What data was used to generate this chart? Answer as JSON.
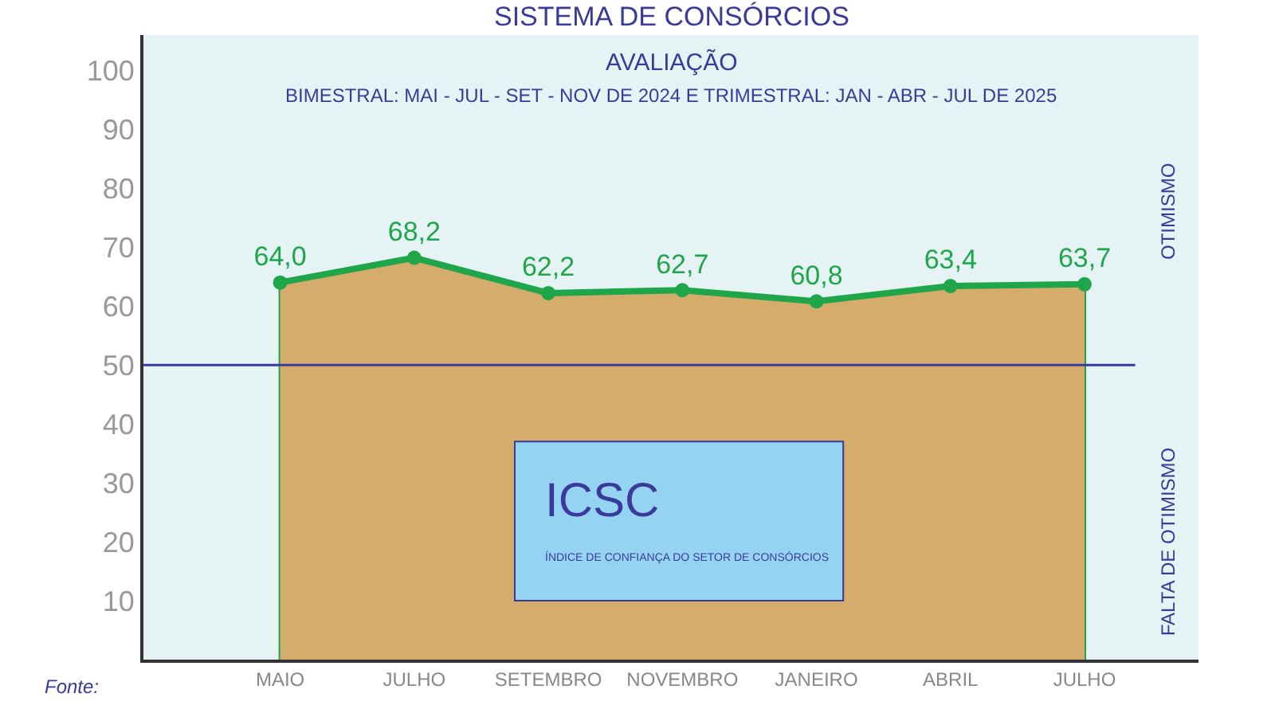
{
  "chart_data": {
    "type": "area",
    "title": "SISTEMA DE CONSÓRCIOS",
    "subtitle": "AVALIAÇÃO\nBIMESTRAL: MAI - JUL - SET - NOV DE 2024 E TRIMESTRAL: JAN - ABR - JUL DE 2025",
    "categories": [
      "MAIO",
      "JULHO",
      "SETEMBRO",
      "NOVEMBRO",
      "JANEIRO",
      "ABRIL",
      "JULHO"
    ],
    "series": [
      {
        "color": "#d6ac6c",
        "values": [
          64.0,
          68.2,
          62.2,
          62.7,
          60.8,
          63.4,
          63.7
        ]
      },
      {
        "type": "line",
        "marker": "circle",
        "color": "#1fa64a",
        "values": [
          64.0,
          68.2,
          62.2,
          62.7,
          60.8,
          63.4,
          63.7
        ],
        "value_labels": [
          "64,0",
          "68,2",
          "62,2",
          "62,7",
          "60,8",
          "63,4",
          "63,7"
        ]
      }
    ],
    "ylim": [
      0,
      106
    ],
    "yticks": [
      10,
      20,
      30,
      40,
      50,
      60,
      70,
      80,
      90,
      100
    ],
    "ref_lines": [
      {
        "axis": "y",
        "value": 50,
        "color": "#3a3a9a"
      }
    ],
    "annotations": [
      "ICSC",
      "ÍNDICE DE CONFIANÇA DO SETOR DE CONSÓRCIOS",
      "OTIMISMO",
      "FALTA DE OTIMISMO",
      "Fonte:"
    ],
    "grid": false
  }
}
